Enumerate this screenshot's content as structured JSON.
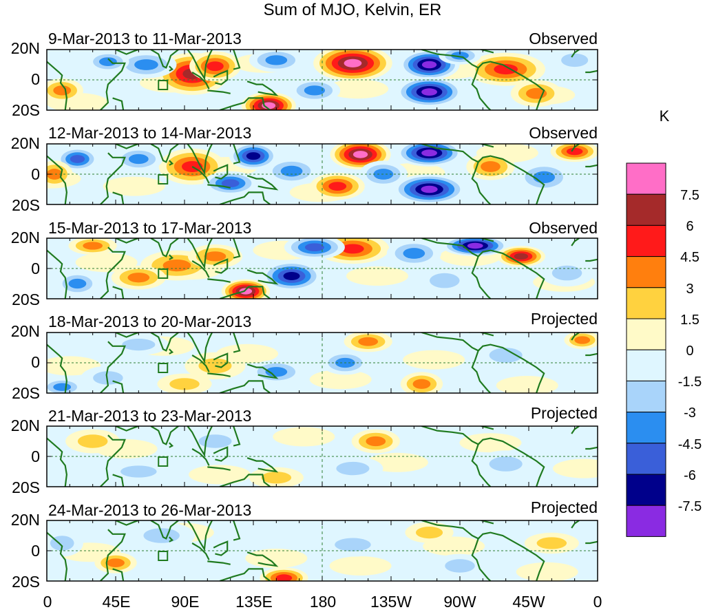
{
  "title": "Sum of MJO, Kelvin, ER",
  "lat_labels": [
    "20N",
    "0",
    "20S"
  ],
  "lon_labels": [
    "0",
    "45E",
    "90E",
    "135E",
    "180",
    "135W",
    "90W",
    "45W",
    "0"
  ],
  "panels": [
    {
      "date": "9-Mar-2013 to 11-Mar-2013",
      "kind": "Observed"
    },
    {
      "date": "12-Mar-2013 to 14-Mar-2013",
      "kind": "Observed"
    },
    {
      "date": "15-Mar-2013 to 17-Mar-2013",
      "kind": "Observed"
    },
    {
      "date": "18-Mar-2013 to 20-Mar-2013",
      "kind": "Projected"
    },
    {
      "date": "21-Mar-2013 to 23-Mar-2013",
      "kind": "Projected"
    },
    {
      "date": "24-Mar-2013 to 26-Mar-2013",
      "kind": "Projected"
    }
  ],
  "colorbar": {
    "unit": "K",
    "labels": [
      "7.5",
      "6",
      "4.5",
      "3",
      "1.5",
      "0",
      "-1.5",
      "-3",
      "-4.5",
      "-6",
      "-7.5"
    ],
    "colors": [
      "#ff6ec7",
      "#a52a2a",
      "#ff1a1a",
      "#ff7f0e",
      "#ffd23f",
      "#fffac8",
      "#dff6ff",
      "#a9d4fa",
      "#2b8ef0",
      "#3a5fd9",
      "#00008b",
      "#8a2be2"
    ]
  },
  "blobs": [
    [
      {
        "lon": 95,
        "lat": 4,
        "a": 22,
        "b": 13,
        "v": 6.5
      },
      {
        "lon": 110,
        "lat": 9,
        "a": 15,
        "b": 9,
        "v": 4.5
      },
      {
        "lon": 200,
        "lat": 11,
        "a": 24,
        "b": 11,
        "v": 8.2
      },
      {
        "lon": 250,
        "lat": 10,
        "a": 18,
        "b": 9,
        "v": -8
      },
      {
        "lon": 250,
        "lat": -8,
        "a": 20,
        "b": 9,
        "v": -8.2
      },
      {
        "lon": 300,
        "lat": 7,
        "a": 24,
        "b": 10,
        "v": 4.5
      },
      {
        "lon": 320,
        "lat": -9,
        "a": 15,
        "b": 8,
        "v": 4
      },
      {
        "lon": 145,
        "lat": -17,
        "a": 16,
        "b": 8,
        "v": 7.6
      },
      {
        "lon": 65,
        "lat": 10,
        "a": 18,
        "b": 8,
        "v": -3
      },
      {
        "lon": 150,
        "lat": 13,
        "a": 16,
        "b": 7,
        "v": -3.5
      },
      {
        "lon": 10,
        "lat": -7,
        "a": 12,
        "b": 7,
        "v": 3
      },
      {
        "lon": 40,
        "lat": 12,
        "a": 12,
        "b": 6,
        "v": -3
      },
      {
        "lon": 175,
        "lat": -7,
        "a": 15,
        "b": 7,
        "v": -3
      },
      {
        "lon": 345,
        "lat": 13,
        "a": 14,
        "b": 7,
        "v": -2.5
      },
      {
        "lon": 270,
        "lat": 16,
        "a": 12,
        "b": 5,
        "v": -4
      }
    ],
    [
      {
        "lon": 95,
        "lat": 5,
        "a": 20,
        "b": 11,
        "v": 5.5
      },
      {
        "lon": 135,
        "lat": 12,
        "a": 14,
        "b": 8,
        "v": -6.5
      },
      {
        "lon": 60,
        "lat": 10,
        "a": 14,
        "b": 7,
        "v": -4
      },
      {
        "lon": 205,
        "lat": 13,
        "a": 18,
        "b": 9,
        "v": 8
      },
      {
        "lon": 250,
        "lat": 14,
        "a": 20,
        "b": 8,
        "v": -8
      },
      {
        "lon": 250,
        "lat": -10,
        "a": 22,
        "b": 9,
        "v": -8
      },
      {
        "lon": 190,
        "lat": -8,
        "a": 16,
        "b": 8,
        "v": 4.5
      },
      {
        "lon": 120,
        "lat": -6,
        "a": 16,
        "b": 7,
        "v": -4.5
      },
      {
        "lon": 160,
        "lat": 2,
        "a": 16,
        "b": 8,
        "v": -4
      },
      {
        "lon": 345,
        "lat": 15,
        "a": 14,
        "b": 6,
        "v": 5
      },
      {
        "lon": 325,
        "lat": -2,
        "a": 16,
        "b": 9,
        "v": -3
      },
      {
        "lon": 20,
        "lat": 10,
        "a": 12,
        "b": 7,
        "v": -5
      },
      {
        "lon": 5,
        "lat": 0,
        "a": 10,
        "b": 8,
        "v": 3.5
      },
      {
        "lon": 290,
        "lat": 5,
        "a": 14,
        "b": 8,
        "v": 3
      },
      {
        "lon": 220,
        "lat": 0,
        "a": 14,
        "b": 8,
        "v": -3
      }
    ],
    [
      {
        "lon": 85,
        "lat": 2,
        "a": 22,
        "b": 9,
        "v": 3.5
      },
      {
        "lon": 200,
        "lat": 13,
        "a": 22,
        "b": 9,
        "v": 5.5
      },
      {
        "lon": 240,
        "lat": 10,
        "a": 16,
        "b": 8,
        "v": -4
      },
      {
        "lon": 175,
        "lat": 14,
        "a": 18,
        "b": 7,
        "v": -5
      },
      {
        "lon": 160,
        "lat": -5,
        "a": 18,
        "b": 9,
        "v": -6.5
      },
      {
        "lon": 280,
        "lat": 15,
        "a": 20,
        "b": 6,
        "v": -8
      },
      {
        "lon": 310,
        "lat": 8,
        "a": 14,
        "b": 6,
        "v": 6.5
      },
      {
        "lon": 130,
        "lat": -15,
        "a": 14,
        "b": 7,
        "v": 7.8
      },
      {
        "lon": 60,
        "lat": -6,
        "a": 16,
        "b": 7,
        "v": 3
      },
      {
        "lon": 110,
        "lat": 8,
        "a": 16,
        "b": 7,
        "v": 3
      },
      {
        "lon": 30,
        "lat": 15,
        "a": 14,
        "b": 5,
        "v": 3.5
      },
      {
        "lon": 260,
        "lat": -8,
        "a": 16,
        "b": 8,
        "v": -2.5
      },
      {
        "lon": 340,
        "lat": -3,
        "a": 16,
        "b": 8,
        "v": -2.5
      },
      {
        "lon": 20,
        "lat": -10,
        "a": 12,
        "b": 7,
        "v": -3
      }
    ],
    [
      {
        "lon": 210,
        "lat": 14,
        "a": 14,
        "b": 6,
        "v": 3
      },
      {
        "lon": 245,
        "lat": -14,
        "a": 12,
        "b": 7,
        "v": 4
      },
      {
        "lon": 150,
        "lat": -6,
        "a": 16,
        "b": 7,
        "v": -3
      },
      {
        "lon": 195,
        "lat": 0,
        "a": 14,
        "b": 7,
        "v": -3.5
      },
      {
        "lon": 110,
        "lat": -2,
        "a": 18,
        "b": 8,
        "v": 2
      },
      {
        "lon": 90,
        "lat": -14,
        "a": 16,
        "b": 6,
        "v": 2
      },
      {
        "lon": 300,
        "lat": 5,
        "a": 18,
        "b": 8,
        "v": -2
      },
      {
        "lon": 40,
        "lat": -10,
        "a": 16,
        "b": 7,
        "v": -2
      },
      {
        "lon": 60,
        "lat": 12,
        "a": 18,
        "b": 6,
        "v": -1.8
      },
      {
        "lon": 350,
        "lat": 15,
        "a": 10,
        "b": 5,
        "v": 3
      },
      {
        "lon": 10,
        "lat": -16,
        "a": 12,
        "b": 5,
        "v": -3
      }
    ],
    [
      {
        "lon": 215,
        "lat": 10,
        "a": 14,
        "b": 7,
        "v": 4
      },
      {
        "lon": 150,
        "lat": -14,
        "a": 16,
        "b": 6,
        "v": 2
      },
      {
        "lon": 30,
        "lat": 10,
        "a": 16,
        "b": 7,
        "v": 2
      },
      {
        "lon": 110,
        "lat": 10,
        "a": 18,
        "b": 7,
        "v": -2
      },
      {
        "lon": 200,
        "lat": -8,
        "a": 18,
        "b": 7,
        "v": -2
      },
      {
        "lon": 300,
        "lat": -5,
        "a": 18,
        "b": 8,
        "v": -1.8
      },
      {
        "lon": 60,
        "lat": -10,
        "a": 20,
        "b": 6,
        "v": -1.8
      }
    ],
    [
      {
        "lon": 155,
        "lat": -18,
        "a": 14,
        "b": 6,
        "v": 4.5
      },
      {
        "lon": 45,
        "lat": -8,
        "a": 12,
        "b": 6,
        "v": 3
      },
      {
        "lon": 75,
        "lat": 10,
        "a": 20,
        "b": 8,
        "v": -2.5
      },
      {
        "lon": 200,
        "lat": 4,
        "a": 20,
        "b": 7,
        "v": -2
      },
      {
        "lon": 270,
        "lat": -10,
        "a": 16,
        "b": 7,
        "v": -2
      },
      {
        "lon": 250,
        "lat": 12,
        "a": 14,
        "b": 6,
        "v": 2
      },
      {
        "lon": 330,
        "lat": 5,
        "a": 16,
        "b": 6,
        "v": 1.8
      },
      {
        "lon": 10,
        "lat": 5,
        "a": 12,
        "b": 8,
        "v": -2.5
      }
    ]
  ]
}
